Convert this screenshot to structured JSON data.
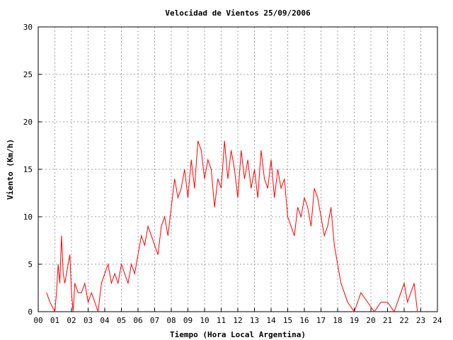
{
  "chart_data": {
    "type": "line",
    "title": "Velocidad de Vientos 25/09/2006",
    "xlabel": "Tiempo (Hora Local Argentina)",
    "ylabel": "Viento (Km/h)",
    "xlim": [
      0,
      24
    ],
    "ylim": [
      0,
      30
    ],
    "x_tick_labels": [
      "00",
      "01",
      "02",
      "03",
      "04",
      "05",
      "06",
      "07",
      "08",
      "09",
      "10",
      "11",
      "12",
      "13",
      "14",
      "15",
      "16",
      "17",
      "18",
      "19",
      "20",
      "21",
      "22",
      "23",
      "24"
    ],
    "y_ticks": [
      0,
      5,
      10,
      15,
      20,
      25,
      30
    ],
    "grid": true,
    "series_color": "#ff0000",
    "series": [
      {
        "x": [
          0.5,
          0.7,
          1.0,
          1.1,
          1.2,
          1.3,
          1.4,
          1.5,
          1.6,
          1.7,
          1.8,
          1.9,
          2.0,
          2.1,
          2.2,
          2.4,
          2.6,
          2.8,
          3.0,
          3.2,
          3.4,
          3.6,
          3.8,
          4.0,
          4.2,
          4.4,
          4.6,
          4.8,
          5.0,
          5.2,
          5.4,
          5.6,
          5.8,
          6.0,
          6.2,
          6.4,
          6.6,
          6.8,
          7.0,
          7.2,
          7.4,
          7.6,
          7.8,
          8.0,
          8.2,
          8.4,
          8.6,
          8.8,
          9.0,
          9.2,
          9.4,
          9.6,
          9.8,
          10.0,
          10.2,
          10.4,
          10.6,
          10.8,
          11.0,
          11.2,
          11.4,
          11.6,
          11.8,
          12.0,
          12.2,
          12.4,
          12.6,
          12.8,
          13.0,
          13.2,
          13.4,
          13.6,
          13.8,
          14.0,
          14.2,
          14.4,
          14.6,
          14.8,
          15.0,
          15.2,
          15.4,
          15.6,
          15.8,
          16.0,
          16.2,
          16.4,
          16.6,
          16.8,
          17.0,
          17.2,
          17.4,
          17.6,
          17.8,
          18.0,
          18.2,
          18.4,
          18.6,
          19.0,
          19.4,
          19.8,
          20.2,
          20.6,
          21.0,
          21.4,
          21.8,
          22.0,
          22.2,
          22.4,
          22.6,
          22.8
        ],
        "y": [
          2,
          1,
          0,
          2,
          5,
          3,
          8,
          4,
          3,
          4,
          5,
          6,
          2,
          0,
          3,
          2,
          2,
          3,
          1,
          2,
          1,
          0,
          3,
          4,
          5,
          3,
          4,
          3,
          5,
          4,
          3,
          5,
          4,
          6,
          8,
          7,
          9,
          8,
          7,
          6,
          9,
          10,
          8,
          11,
          14,
          12,
          13,
          15,
          12,
          16,
          13,
          18,
          17,
          14,
          16,
          15,
          11,
          14,
          13,
          18,
          14,
          17,
          15,
          12,
          17,
          14,
          16,
          13,
          15,
          12,
          17,
          14,
          13,
          16,
          12,
          15,
          13,
          14,
          10,
          9,
          8,
          11,
          10,
          12,
          11,
          9,
          13,
          12,
          10,
          8,
          9,
          11,
          7,
          5,
          3,
          2,
          1,
          0,
          2,
          1,
          0,
          1,
          1,
          0,
          2,
          3,
          1,
          2,
          3,
          0
        ]
      }
    ]
  }
}
